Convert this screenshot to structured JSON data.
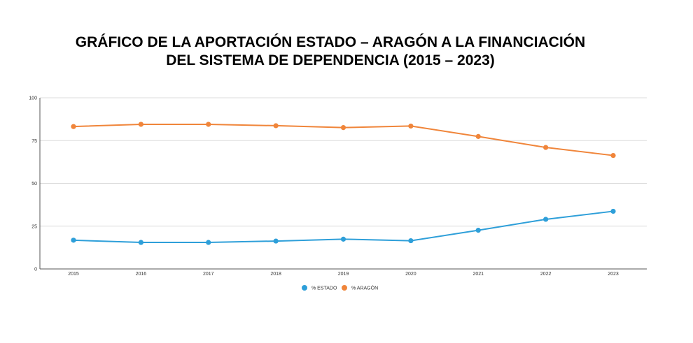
{
  "title": {
    "line1": "GRÁFICO DE LA APORTACIÓN ESTADO – ARAGÓN A LA FINANCIACIÓN",
    "line2": "DEL SISTEMA DE DEPENDENCIA (2015 – 2023)"
  },
  "chart_data": {
    "type": "line",
    "title": "GRÁFICO DE LA APORTACIÓN ESTADO – ARAGÓN A LA FINANCIACIÓN DEL SISTEMA DE DEPENDENCIA (2015 – 2023)",
    "categories": [
      "2015",
      "2016",
      "2017",
      "2018",
      "2019",
      "2020",
      "2021",
      "2022",
      "2023"
    ],
    "ylim": [
      0,
      100
    ],
    "yticks": [
      "0",
      "25",
      "50",
      "75",
      "100"
    ],
    "grid": true,
    "legend_position": "bottom",
    "series": [
      {
        "name": "% ESTADO",
        "color": "#2E9FD9",
        "values": [
          16.8,
          15.5,
          15.5,
          16.3,
          17.4,
          16.5,
          22.6,
          29.0,
          33.7
        ]
      },
      {
        "name": "% ARAGÓN",
        "color": "#F0853A",
        "values": [
          83.2,
          84.5,
          84.5,
          83.7,
          82.6,
          83.5,
          77.4,
          71.0,
          66.3
        ]
      }
    ]
  }
}
